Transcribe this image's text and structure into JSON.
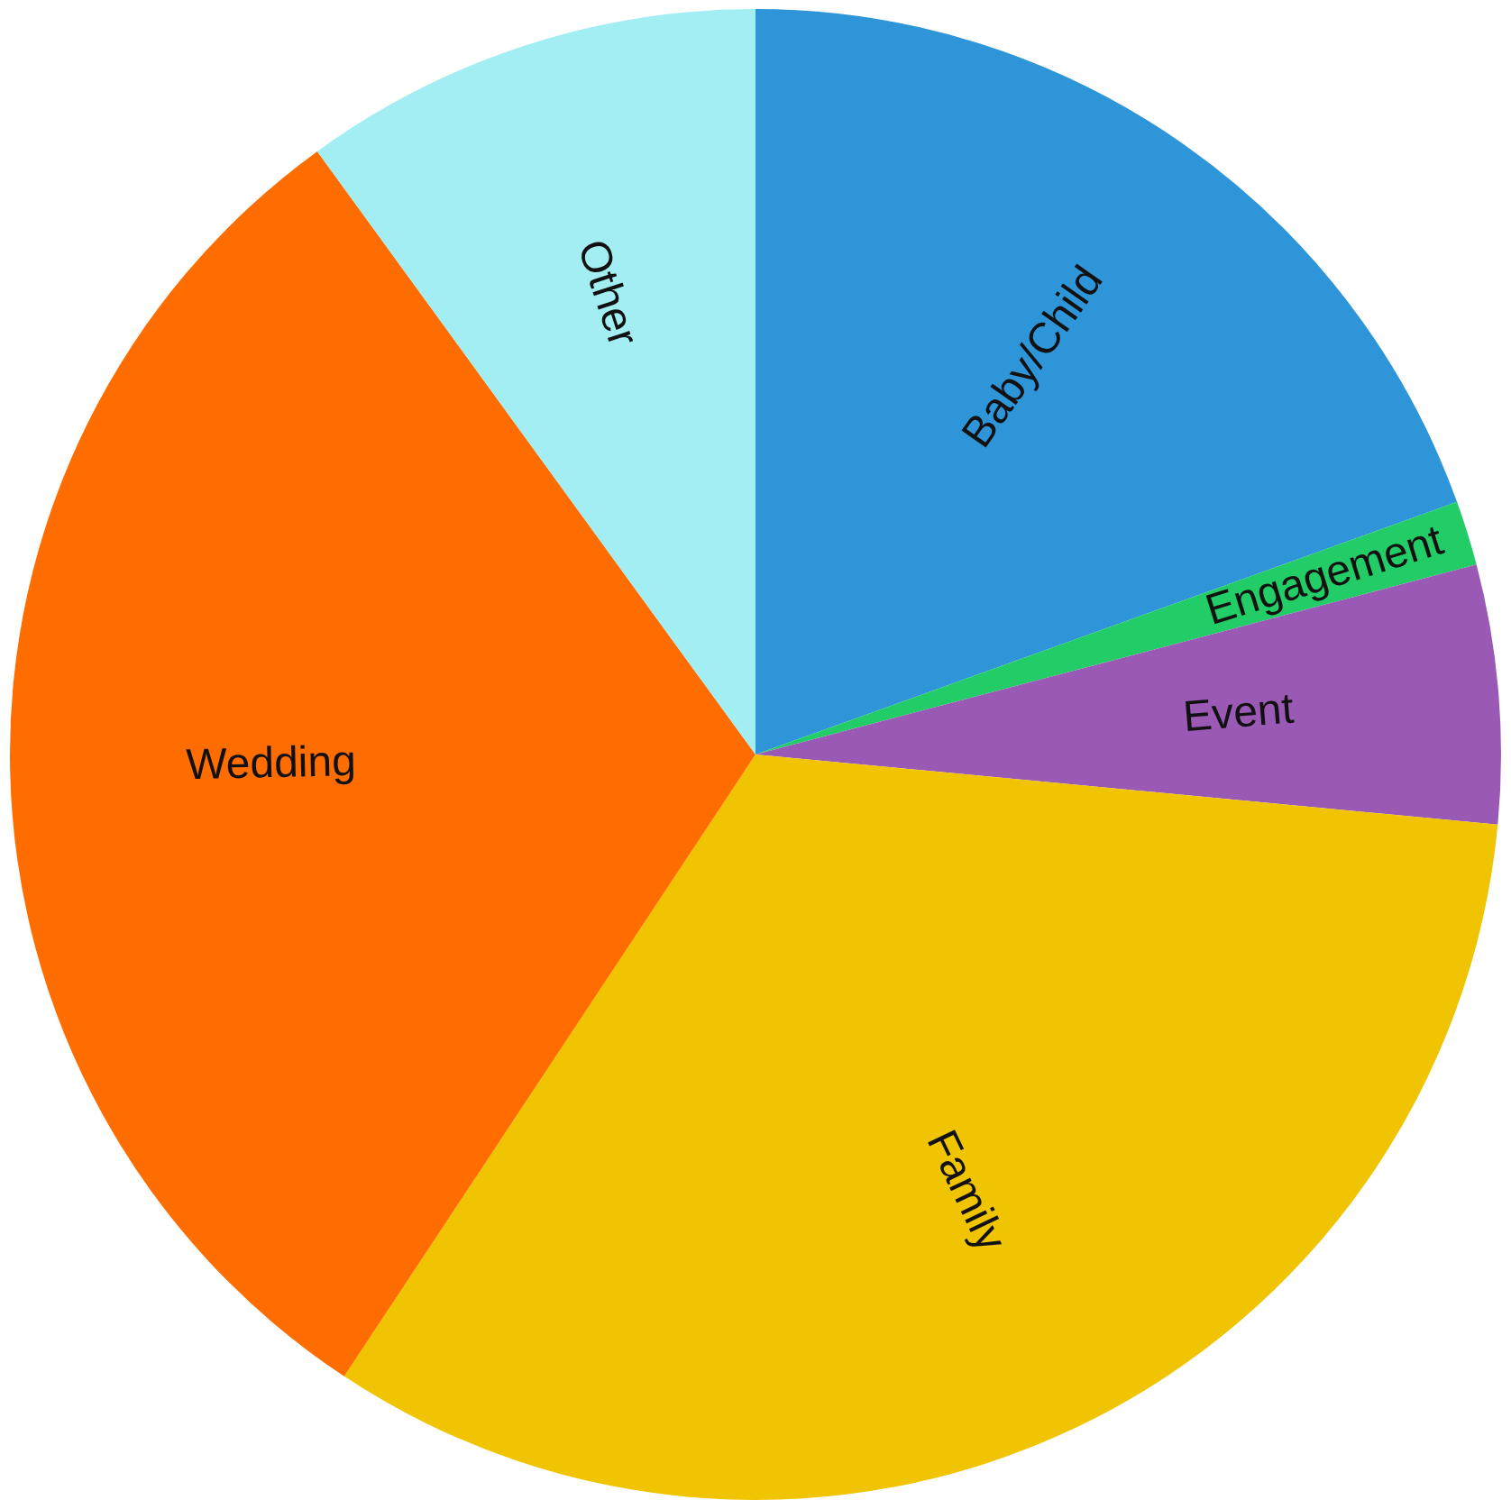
{
  "chart_data": {
    "type": "pie",
    "categories": [
      "Baby/Child",
      "Engagement",
      "Event",
      "Family",
      "Wedding",
      "Other"
    ],
    "values": [
      19.5,
      1.4,
      5.6,
      32.8,
      30.7,
      10.0
    ],
    "colors": [
      "#2e95d9",
      "#22cc66",
      "#9b59b6",
      "#f0c400",
      "#ff6d00",
      "#a3eef2"
    ],
    "legend": false
  }
}
